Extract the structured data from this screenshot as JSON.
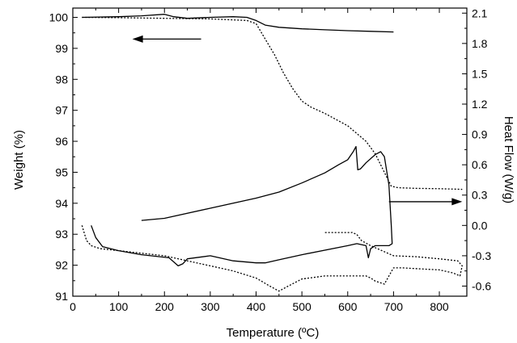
{
  "chart_data": {
    "type": "line",
    "title": "",
    "xlabel": "Temperature (ºC)",
    "ylabel_left": "Weight (%)",
    "ylabel_right": "Heat Flow (W/g)",
    "xlim": [
      0,
      860
    ],
    "ylim_left": [
      91,
      100.3
    ],
    "ylim_right": [
      -0.7,
      2.15
    ],
    "x_ticks": [
      0,
      100,
      200,
      300,
      400,
      500,
      600,
      700,
      800
    ],
    "x_tick_labels": [
      "0",
      "100",
      "200",
      "300",
      "400",
      "500",
      "600",
      "700",
      "800"
    ],
    "y_left_ticks": [
      91,
      92,
      93,
      94,
      95,
      96,
      97,
      98,
      99,
      100
    ],
    "y_left_tick_labels": [
      "91",
      "92",
      "93",
      "94",
      "95",
      "96",
      "97",
      "98",
      "99",
      "100"
    ],
    "y_right_ticks": [
      -0.6,
      -0.3,
      0.0,
      0.3,
      0.6,
      0.9,
      1.2,
      1.5,
      1.8,
      2.1
    ],
    "y_right_tick_labels": [
      "-0.6",
      "-0.3",
      "0.0",
      "0.3",
      "0.6",
      "0.9",
      "1.2",
      "1.5",
      "1.8",
      "2.1"
    ],
    "grid": false,
    "legend": "none",
    "series": [
      {
        "axis": "left",
        "style": "solid",
        "color": "#000000",
        "x": [
          20,
          100,
          150,
          200,
          220,
          250,
          300,
          350,
          380,
          400,
          420,
          450,
          500,
          550,
          600,
          650,
          700
        ],
        "y": [
          100.0,
          100.02,
          100.05,
          100.1,
          100.02,
          99.97,
          100.0,
          100.02,
          100.0,
          99.9,
          99.75,
          99.68,
          99.63,
          99.6,
          99.57,
          99.55,
          99.53
        ]
      },
      {
        "axis": "left",
        "style": "dotted",
        "color": "#000000",
        "x": [
          20,
          100,
          200,
          300,
          380,
          400,
          420,
          440,
          460,
          480,
          500,
          520,
          550,
          600,
          640,
          660,
          680,
          695,
          710,
          750,
          800,
          850
        ],
        "y": [
          100.0,
          99.99,
          99.97,
          99.95,
          99.9,
          99.8,
          99.3,
          98.8,
          98.2,
          97.7,
          97.3,
          97.1,
          96.9,
          96.5,
          96.0,
          95.6,
          95.0,
          94.55,
          94.5,
          94.48,
          94.47,
          94.45
        ]
      },
      {
        "axis": "right",
        "style": "solid",
        "color": "#000000",
        "x": [
          150,
          200,
          300,
          400,
          450,
          500,
          550,
          580,
          600,
          612,
          618,
          622,
          628,
          640,
          660,
          672,
          680,
          690,
          695,
          697,
          690,
          660,
          650,
          645,
          640,
          620,
          600,
          500,
          450,
          420,
          400,
          350,
          300,
          250,
          240,
          230,
          210,
          150,
          100,
          65,
          50,
          40
        ],
        "y": [
          0.05,
          0.07,
          0.17,
          0.27,
          0.33,
          0.42,
          0.52,
          0.6,
          0.65,
          0.73,
          0.78,
          0.55,
          0.56,
          0.62,
          0.7,
          0.73,
          0.68,
          0.4,
          0.0,
          -0.18,
          -0.2,
          -0.2,
          -0.23,
          -0.32,
          -0.2,
          -0.18,
          -0.2,
          -0.29,
          -0.34,
          -0.37,
          -0.37,
          -0.35,
          -0.3,
          -0.33,
          -0.38,
          -0.4,
          -0.32,
          -0.29,
          -0.25,
          -0.21,
          -0.12,
          0.0
        ]
      },
      {
        "axis": "right",
        "style": "dotted",
        "color": "#000000",
        "x": [
          20,
          30,
          40,
          60,
          100,
          200,
          250,
          300,
          350,
          400,
          430,
          450,
          470,
          500,
          550,
          600,
          640,
          650,
          660,
          680,
          690,
          700,
          720,
          760,
          800,
          830,
          845,
          850,
          840,
          800,
          750,
          700,
          650,
          630,
          620,
          610,
          550
        ],
        "y": [
          0.0,
          -0.15,
          -0.2,
          -0.23,
          -0.25,
          -0.3,
          -0.35,
          -0.4,
          -0.45,
          -0.52,
          -0.6,
          -0.65,
          -0.6,
          -0.53,
          -0.5,
          -0.5,
          -0.5,
          -0.52,
          -0.55,
          -0.58,
          -0.5,
          -0.42,
          -0.42,
          -0.43,
          -0.44,
          -0.47,
          -0.5,
          -0.4,
          -0.35,
          -0.33,
          -0.31,
          -0.3,
          -0.2,
          -0.15,
          -0.09,
          -0.07,
          -0.07
        ]
      }
    ],
    "annotations": [
      {
        "type": "arrow",
        "direction": "left",
        "from_x": 280,
        "to_x": 130,
        "y_left": 99.3
      },
      {
        "type": "arrow",
        "direction": "right",
        "from_x": 690,
        "to_x": 850,
        "y_left": 94.05
      }
    ]
  }
}
